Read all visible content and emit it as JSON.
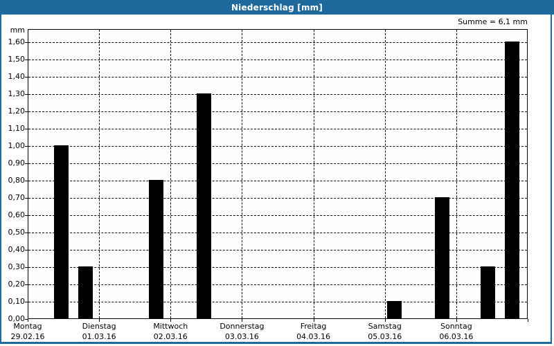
{
  "window": {
    "title": "Niederschlag [mm]"
  },
  "colors": {
    "titlebar_blue": "#1f6a9d",
    "frame_blue": "#1f6a9d",
    "title_text": "#ffffff",
    "bar_black": "#000000",
    "plot_background": "#fefefe",
    "page_background": "#ffffff"
  },
  "chart_data": {
    "type": "bar",
    "title": "Niederschlag [mm]",
    "ylabel": "mm",
    "unit": "mm",
    "sum_text": "Summe = 6,1 mm",
    "sum_value_mm": 6.1,
    "ylim": [
      0,
      1.68
    ],
    "ytick_interval": 0.1,
    "grid": "dashed-black",
    "legend": "none",
    "bar_color": "#000000",
    "ytick_labels": [
      "0,00",
      "0,10",
      "0,20",
      "0,30",
      "0,40",
      "0,50",
      "0,60",
      "0,70",
      "0,80",
      "0,90",
      "1,00",
      "1,10",
      "1,20",
      "1,30",
      "1,40",
      "1,50",
      "1,60"
    ],
    "days": [
      {
        "name": "Montag",
        "date": "29.02.16"
      },
      {
        "name": "Dienstag",
        "date": "01.03.16"
      },
      {
        "name": "Mittwoch",
        "date": "02.03.16"
      },
      {
        "name": "Donnerstag",
        "date": "03.03.16"
      },
      {
        "name": "Freitag",
        "date": "04.03.16"
      },
      {
        "name": "Samstag",
        "date": "05.03.16"
      },
      {
        "name": "Sonntag",
        "date": "06.03.16"
      }
    ],
    "bars": [
      {
        "day": "Montag",
        "value": 1.0,
        "label": "1,00",
        "x_frac": 0.0512
      },
      {
        "day": "Montag",
        "value": 0.3,
        "label": "0,30",
        "x_frac": 0.0997
      },
      {
        "day": "Dienstag",
        "value": 0.8,
        "label": "0,80",
        "x_frac": 0.241
      },
      {
        "day": "Mittwoch",
        "value": 1.3,
        "label": "1,30",
        "x_frac": 0.3366
      },
      {
        "day": "Samstag",
        "value": 0.1,
        "label": "0,10",
        "x_frac": 0.7175
      },
      {
        "day": "Samstag",
        "value": 0.7,
        "label": "0,70",
        "x_frac": 0.813
      },
      {
        "day": "Sonntag",
        "value": 0.3,
        "label": "0,30",
        "x_frac": 0.9044
      },
      {
        "day": "Sonntag",
        "value": 1.6,
        "label": "1,60",
        "x_frac": 0.9529
      }
    ],
    "values_by_day": {
      "Montag": [
        1.0,
        0.3
      ],
      "Dienstag": [
        0.8
      ],
      "Mittwoch": [
        1.3
      ],
      "Donnerstag": [],
      "Freitag": [],
      "Samstag": [
        0.1,
        0.7
      ],
      "Sonntag": [
        0.3,
        1.6
      ]
    }
  }
}
